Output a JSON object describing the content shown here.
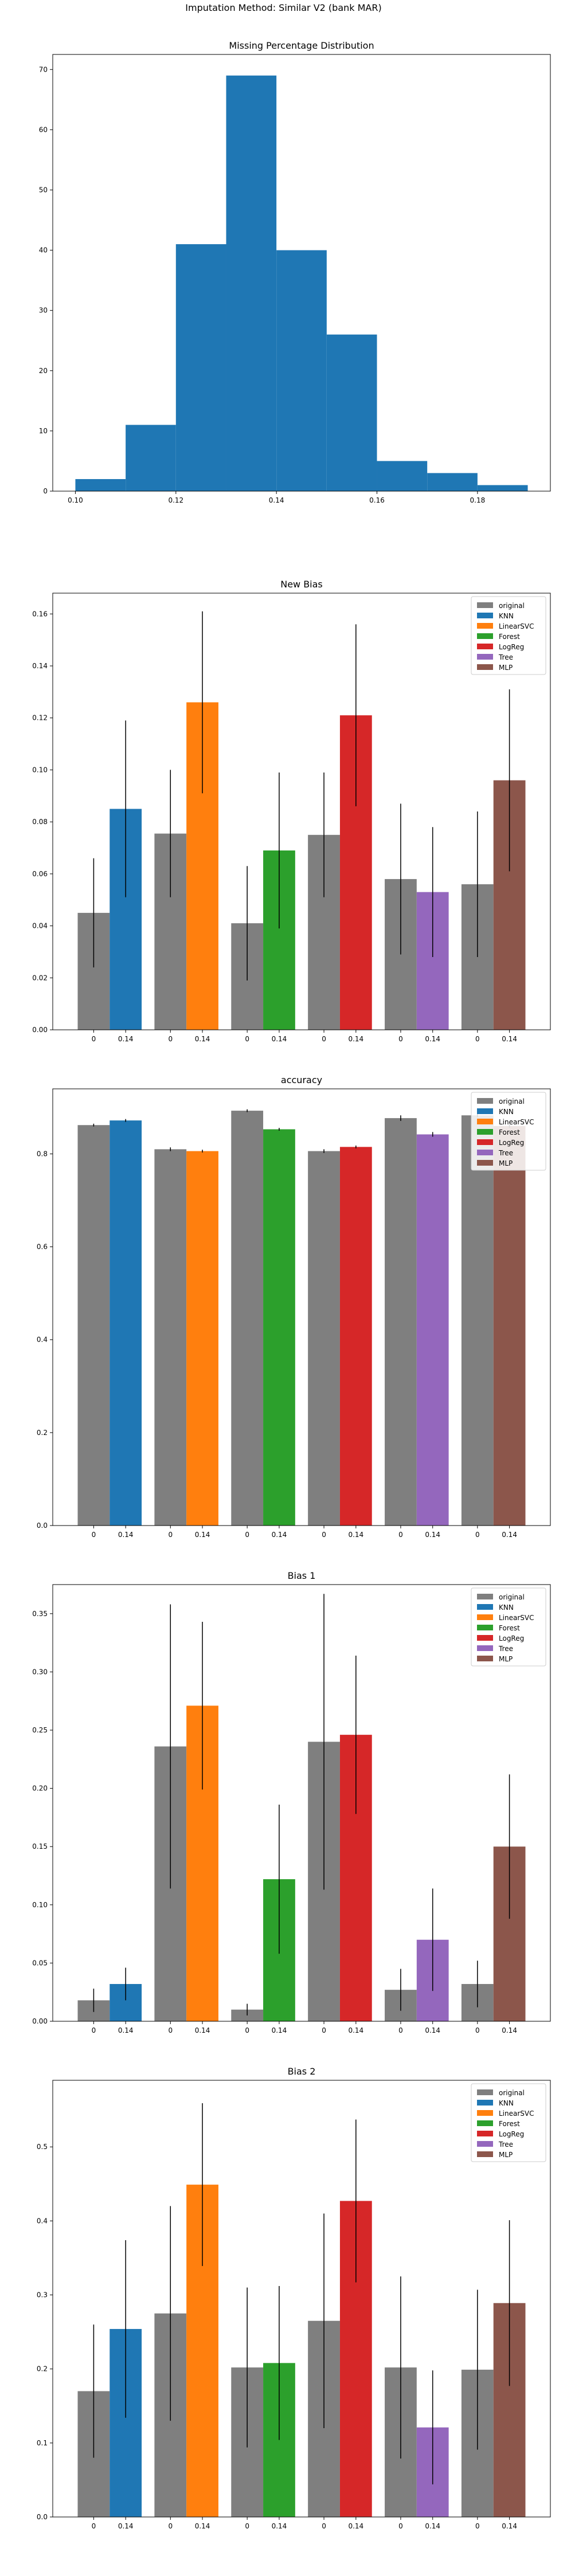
{
  "suptitle": "Imputation Method: Similar V2 (bank MAR)",
  "legend_labels": [
    "original",
    "KNN",
    "LinearSVC",
    "Forest",
    "LogReg",
    "Tree",
    "MLP"
  ],
  "colors": {
    "original": "#7f7f7f",
    "KNN": "#1f77b4",
    "LinearSVC": "#ff7f0e",
    "Forest": "#2ca02c",
    "LogReg": "#d62728",
    "Tree": "#9467bd",
    "MLP": "#8c564b",
    "hist": "#1f77b4"
  },
  "chart_data": [
    {
      "type": "bar",
      "subtype": "histogram",
      "title": "Missing Percentage Distribution",
      "bin_edges": [
        0.1,
        0.11,
        0.12,
        0.13,
        0.14,
        0.15,
        0.16,
        0.17,
        0.18,
        0.19
      ],
      "counts": [
        2,
        11,
        41,
        69,
        40,
        26,
        5,
        3,
        1
      ],
      "xlim": [
        0.0955,
        0.1945
      ],
      "ylim": [
        0,
        72.5
      ],
      "xticks": [
        0.1,
        0.12,
        0.14,
        0.16,
        0.18
      ],
      "xtick_labels": [
        "0.10",
        "0.12",
        "0.14",
        "0.16",
        "0.18"
      ],
      "yticks": [
        0,
        10,
        20,
        30,
        40,
        50,
        60,
        70
      ],
      "ytick_labels": [
        "0",
        "10",
        "20",
        "30",
        "40",
        "50",
        "60",
        "70"
      ]
    },
    {
      "type": "bar",
      "title": "New Bias",
      "legend": "top-right",
      "groups": [
        "KNN",
        "LinearSVC",
        "Forest",
        "LogReg",
        "Tree",
        "MLP"
      ],
      "tick_labels": [
        "0",
        "0.14"
      ],
      "original": [
        0.045,
        0.0755,
        0.041,
        0.075,
        0.058,
        0.056
      ],
      "original_err": [
        0.021,
        0.0245,
        0.022,
        0.024,
        0.029,
        0.028
      ],
      "imputed": [
        0.085,
        0.126,
        0.069,
        0.121,
        0.053,
        0.096
      ],
      "imputed_err": [
        0.034,
        0.035,
        0.03,
        0.035,
        0.025,
        0.035
      ],
      "ylim": [
        0,
        0.168
      ],
      "yticks": [
        0,
        0.02,
        0.04,
        0.06,
        0.08,
        0.1,
        0.12,
        0.14,
        0.16
      ],
      "ytick_labels": [
        "0.00",
        "0.02",
        "0.04",
        "0.06",
        "0.08",
        "0.10",
        "0.12",
        "0.14",
        "0.16"
      ]
    },
    {
      "type": "bar",
      "title": "accuracy",
      "legend": "top-right",
      "groups": [
        "KNN",
        "LinearSVC",
        "Forest",
        "LogReg",
        "Tree",
        "MLP"
      ],
      "tick_labels": [
        "0",
        "0.14"
      ],
      "original": [
        0.862,
        0.81,
        0.893,
        0.806,
        0.877,
        0.883
      ],
      "original_err": [
        0.003,
        0.004,
        0.003,
        0.004,
        0.006,
        0.004
      ],
      "imputed": [
        0.872,
        0.806,
        0.853,
        0.815,
        0.842,
        0.86
      ],
      "imputed_err": [
        0.003,
        0.003,
        0.003,
        0.003,
        0.005,
        0.004
      ],
      "ylim": [
        0,
        0.94
      ],
      "yticks": [
        0,
        0.2,
        0.4,
        0.6,
        0.8
      ],
      "ytick_labels": [
        "0.0",
        "0.2",
        "0.4",
        "0.6",
        "0.8"
      ]
    },
    {
      "type": "bar",
      "title": "Bias 1",
      "legend": "top-right",
      "groups": [
        "KNN",
        "LinearSVC",
        "Forest",
        "LogReg",
        "Tree",
        "MLP"
      ],
      "tick_labels": [
        "0",
        "0.14"
      ],
      "original": [
        0.018,
        0.236,
        0.01,
        0.24,
        0.027,
        0.032
      ],
      "original_err": [
        0.01,
        0.122,
        0.005,
        0.127,
        0.018,
        0.02
      ],
      "imputed": [
        0.032,
        0.271,
        0.122,
        0.246,
        0.07,
        0.15
      ],
      "imputed_err": [
        0.014,
        0.072,
        0.064,
        0.068,
        0.044,
        0.062
      ],
      "ylim": [
        0,
        0.375
      ],
      "yticks": [
        0,
        0.05,
        0.1,
        0.15,
        0.2,
        0.25,
        0.3,
        0.35
      ],
      "ytick_labels": [
        "0.00",
        "0.05",
        "0.10",
        "0.15",
        "0.20",
        "0.25",
        "0.30",
        "0.35"
      ]
    },
    {
      "type": "bar",
      "title": "Bias 2",
      "legend": "top-right",
      "groups": [
        "KNN",
        "LinearSVC",
        "Forest",
        "LogReg",
        "Tree",
        "MLP"
      ],
      "tick_labels": [
        "0",
        "0.14"
      ],
      "original": [
        0.17,
        0.275,
        0.202,
        0.265,
        0.202,
        0.199
      ],
      "original_err": [
        0.09,
        0.145,
        0.108,
        0.145,
        0.123,
        0.108
      ],
      "imputed": [
        0.254,
        0.449,
        0.208,
        0.427,
        0.121,
        0.289
      ],
      "imputed_err": [
        0.12,
        0.11,
        0.104,
        0.11,
        0.077,
        0.112
      ],
      "ylim": [
        0,
        0.59
      ],
      "yticks": [
        0,
        0.1,
        0.2,
        0.3,
        0.4,
        0.5
      ],
      "ytick_labels": [
        "0.0",
        "0.1",
        "0.2",
        "0.3",
        "0.4",
        "0.5"
      ]
    }
  ]
}
